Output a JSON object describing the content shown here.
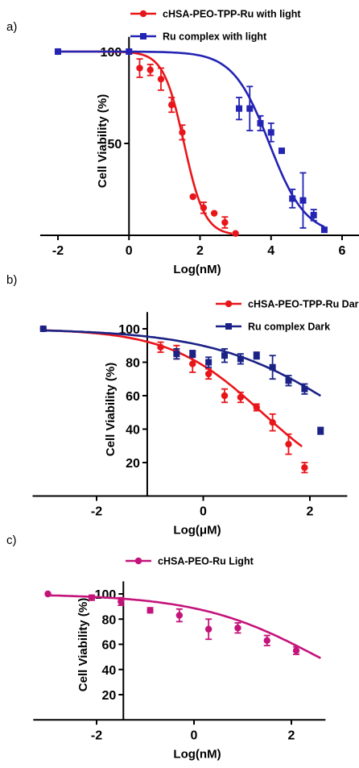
{
  "chart_data": [
    {
      "panel_label": "a)",
      "type": "scatter",
      "xlabel": "Log(nM)",
      "ylabel": "Cell Viability (%)",
      "xlim": [
        -2.5,
        6.5
      ],
      "ylim": [
        0,
        108
      ],
      "xticks": [
        "-2",
        "0",
        "2",
        "4",
        "6"
      ],
      "yticks": [
        "50",
        "100"
      ],
      "legend_position": "top-right",
      "series": [
        {
          "name": "cHSA-PEO-TPP-Ru with light",
          "color": "#e8161b",
          "marker": "circle",
          "x": [
            -2,
            0,
            0.3,
            0.6,
            0.9,
            1.2,
            1.5,
            1.8,
            2.1,
            2.4,
            2.7,
            3.0
          ],
          "y": [
            100,
            100,
            91,
            90,
            85,
            71,
            56,
            21,
            15,
            12,
            7,
            1
          ],
          "err": [
            0,
            0,
            5,
            3,
            6,
            4,
            4,
            0,
            3,
            0,
            3,
            0
          ],
          "fit": {
            "model": "logistic",
            "top": 100,
            "bottom": 0,
            "ec50": 1.55,
            "hill": 1.5,
            "x_range": [
              -2,
              2.9
            ]
          }
        },
        {
          "name": "Ru complex with light",
          "color": "#2323b4",
          "marker": "square",
          "x": [
            -2,
            0,
            3.1,
            3.4,
            3.7,
            4.0,
            4.3,
            4.6,
            4.9,
            5.2,
            5.5
          ],
          "y": [
            100,
            100,
            69,
            69,
            61,
            56,
            46,
            20,
            19,
            11,
            3
          ],
          "err": [
            0,
            0,
            6,
            12,
            4,
            5,
            0,
            5,
            15,
            3,
            0
          ],
          "fit": {
            "model": "logistic",
            "top": 100,
            "bottom": 0,
            "ec50": 3.95,
            "hill": 0.85,
            "x_range": [
              -2,
              5.5
            ]
          }
        }
      ]
    },
    {
      "panel_label": "b)",
      "type": "scatter",
      "xlabel": "Log(μM)",
      "ylabel": "Cell Viability (%)",
      "xlim": [
        -3.2,
        2.7
      ],
      "ylim": [
        0,
        110
      ],
      "xticks": [
        "-2",
        "0",
        "2"
      ],
      "yticks": [
        "20",
        "40",
        "60",
        "80",
        "100"
      ],
      "legend_position": "top-right",
      "series": [
        {
          "name": "cHSA-PEO-TPP-Ru Dark",
          "color": "#e8161b",
          "marker": "circle",
          "x": [
            -3,
            -0.8,
            -0.5,
            -0.2,
            0.1,
            0.4,
            0.7,
            1.0,
            1.3,
            1.6,
            1.9
          ],
          "y": [
            100,
            89,
            86,
            79,
            73,
            60,
            59,
            53,
            44,
            31,
            17
          ],
          "err": [
            0,
            3,
            4,
            5,
            3,
            4,
            3,
            2,
            5,
            6,
            3
          ],
          "fit": {
            "model": "logistic",
            "top": 100,
            "bottom": 0,
            "ec50": 1.1,
            "hill": 0.5,
            "x_range": [
              -3,
              1.85
            ]
          }
        },
        {
          "name": "Ru complex Dark",
          "color": "#1b2286",
          "marker": "square",
          "x": [
            -3,
            -0.5,
            -0.2,
            0.1,
            0.4,
            0.7,
            1.0,
            1.3,
            1.6,
            1.9,
            2.2
          ],
          "y": [
            100,
            85,
            85,
            80,
            84,
            82,
            84,
            77,
            69,
            64,
            39
          ],
          "err": [
            0,
            3,
            2,
            3,
            4,
            3,
            2,
            7,
            3,
            3,
            2
          ],
          "fit": {
            "model": "logistic",
            "top": 100,
            "bottom": 0,
            "ec50": 2.7,
            "hill": 0.35,
            "x_range": [
              -3,
              2.2
            ]
          }
        }
      ]
    },
    {
      "panel_label": "c)",
      "type": "scatter",
      "xlabel": "Log(nM)",
      "ylabel": "Cell Viability (%)",
      "xlim": [
        -3.3,
        2.7
      ],
      "ylim": [
        0,
        110
      ],
      "xticks": [
        "-2",
        "0",
        "2"
      ],
      "yticks": [
        "20",
        "40",
        "60",
        "80",
        "100"
      ],
      "legend_position": "top-right",
      "series": [
        {
          "name": "cHSA-PEO-Ru Light",
          "color": "#c4147a",
          "marker": "circle",
          "x": [
            -3,
            -2.1,
            -1.5,
            -0.9,
            -0.3,
            0.3,
            0.9,
            1.5,
            2.1
          ],
          "y": [
            100,
            97,
            94,
            87,
            83,
            72,
            73,
            63,
            55
          ],
          "err": [
            0,
            2,
            3,
            2,
            5,
            8,
            4,
            4,
            3
          ],
          "fit": {
            "model": "logistic",
            "top": 100,
            "bottom": 0,
            "ec50": 2.55,
            "hill": 0.35,
            "x_range": [
              -3,
              2.6
            ]
          }
        }
      ]
    }
  ]
}
